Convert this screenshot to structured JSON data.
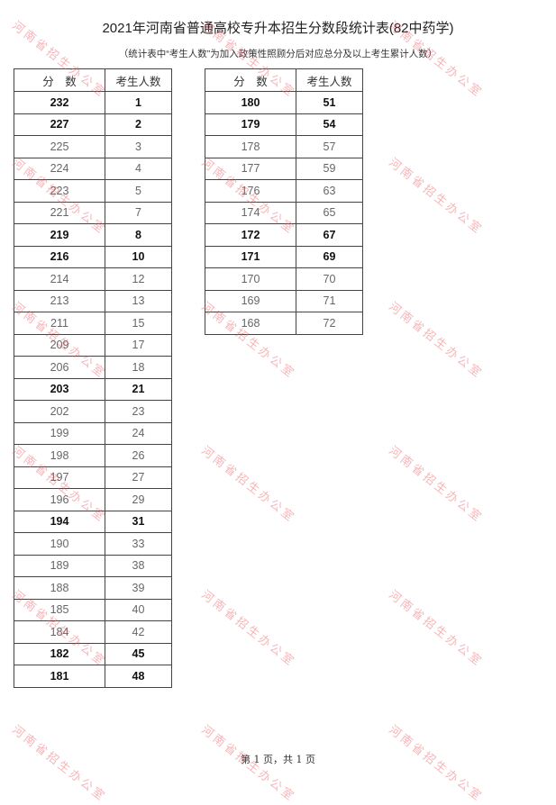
{
  "title": "2021年河南省普通高校专升本招生分数段统计表(82中药学)",
  "subtitle": "（统计表中“考生人数”为加入政策性照顾分后对应总分及以上考生累计人数）",
  "headers": {
    "score": "分　数",
    "count": "考生人数"
  },
  "left_table": [
    {
      "score": "232",
      "count": "1",
      "bold": true
    },
    {
      "score": "227",
      "count": "2",
      "bold": true
    },
    {
      "score": "225",
      "count": "3",
      "bold": false
    },
    {
      "score": "224",
      "count": "4",
      "bold": false
    },
    {
      "score": "223",
      "count": "5",
      "bold": false
    },
    {
      "score": "221",
      "count": "7",
      "bold": false
    },
    {
      "score": "219",
      "count": "8",
      "bold": true
    },
    {
      "score": "216",
      "count": "10",
      "bold": true
    },
    {
      "score": "214",
      "count": "12",
      "bold": false
    },
    {
      "score": "213",
      "count": "13",
      "bold": false
    },
    {
      "score": "211",
      "count": "15",
      "bold": false
    },
    {
      "score": "209",
      "count": "17",
      "bold": false
    },
    {
      "score": "206",
      "count": "18",
      "bold": false
    },
    {
      "score": "203",
      "count": "21",
      "bold": true
    },
    {
      "score": "202",
      "count": "23",
      "bold": false
    },
    {
      "score": "199",
      "count": "24",
      "bold": false
    },
    {
      "score": "198",
      "count": "26",
      "bold": false
    },
    {
      "score": "197",
      "count": "27",
      "bold": false
    },
    {
      "score": "196",
      "count": "29",
      "bold": false
    },
    {
      "score": "194",
      "count": "31",
      "bold": true
    },
    {
      "score": "190",
      "count": "33",
      "bold": false
    },
    {
      "score": "189",
      "count": "38",
      "bold": false
    },
    {
      "score": "188",
      "count": "39",
      "bold": false
    },
    {
      "score": "185",
      "count": "40",
      "bold": false
    },
    {
      "score": "184",
      "count": "42",
      "bold": false
    },
    {
      "score": "182",
      "count": "45",
      "bold": true
    },
    {
      "score": "181",
      "count": "48",
      "bold": true
    }
  ],
  "right_table": [
    {
      "score": "180",
      "count": "51",
      "bold": true
    },
    {
      "score": "179",
      "count": "54",
      "bold": true
    },
    {
      "score": "178",
      "count": "57",
      "bold": false
    },
    {
      "score": "177",
      "count": "59",
      "bold": false
    },
    {
      "score": "176",
      "count": "63",
      "bold": false
    },
    {
      "score": "174",
      "count": "65",
      "bold": false
    },
    {
      "score": "172",
      "count": "67",
      "bold": true
    },
    {
      "score": "171",
      "count": "69",
      "bold": true
    },
    {
      "score": "170",
      "count": "70",
      "bold": false
    },
    {
      "score": "169",
      "count": "71",
      "bold": false
    },
    {
      "score": "168",
      "count": "72",
      "bold": false
    }
  ],
  "footer": "第 1 页，共 1 页",
  "watermark": "河南省招生办公室",
  "watermark_color": "#eb5a64"
}
